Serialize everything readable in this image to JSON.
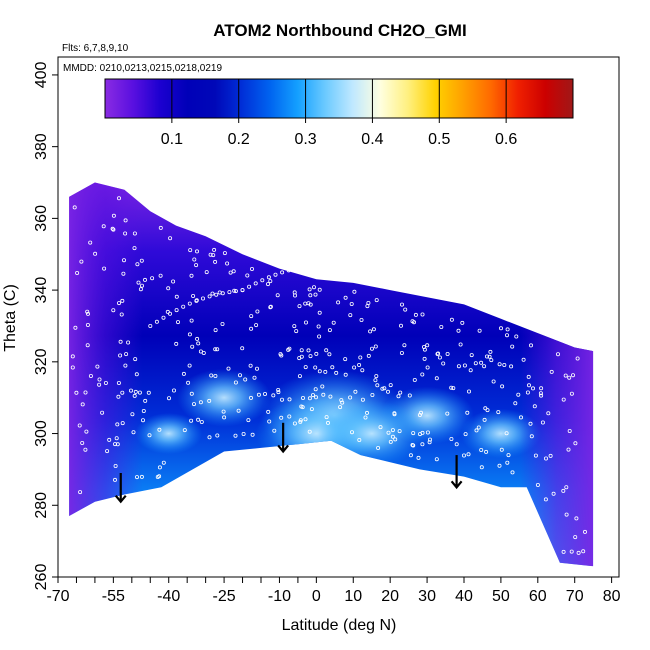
{
  "chart_data": {
    "type": "heatmap",
    "title": "ATOM2 Northbound CH2O_GMI",
    "notes": [
      "Flts: 6,7,8,9,10",
      "MMDD: 0210,0213,0215,0218,0219"
    ],
    "xlabel": "Latitude (deg N)",
    "ylabel": "Theta (C)",
    "xlim": [
      -70,
      82
    ],
    "ylim": [
      260,
      405
    ],
    "xticks": [
      -70,
      -55,
      -40,
      -25,
      -10,
      0,
      10,
      20,
      30,
      40,
      50,
      60,
      70,
      80
    ],
    "xtick_labels": [
      "-70",
      "-55",
      "-40",
      "-25",
      "-10",
      "0",
      "10",
      "20",
      "30",
      "40",
      "50",
      "60",
      "70",
      "80"
    ],
    "xtick_minor": [
      -65,
      -60,
      -50,
      -45,
      -35,
      -30,
      -20,
      -15,
      -5
    ],
    "yticks": [
      260,
      280,
      300,
      320,
      340,
      360,
      380,
      400
    ],
    "ytick_labels": [
      "260",
      "280",
      "300",
      "320",
      "340",
      "360",
      "380",
      "400"
    ],
    "colorbar": {
      "range": [
        0,
        0.7
      ],
      "ticks": [
        0.1,
        0.2,
        0.3,
        0.4,
        0.5,
        0.6
      ],
      "tick_labels": [
        "0.1",
        "0.2",
        "0.3",
        "0.4",
        "0.5",
        "0.6"
      ],
      "colors": [
        "#8a2be2",
        "#5a10e0",
        "#1c00d0",
        "#0000b8",
        "#0008b8",
        "#0030d8",
        "#0064f0",
        "#14a0ff",
        "#6ccaff",
        "#bfe8ff",
        "#ffffe0",
        "#fff080",
        "#ffd200",
        "#ffa000",
        "#ff6a00",
        "#f02000",
        "#cc0000",
        "#a01818"
      ]
    },
    "upper_boundary": [
      [
        -67,
        366
      ],
      [
        -60,
        370
      ],
      [
        -52,
        368
      ],
      [
        -45,
        362
      ],
      [
        -38,
        358
      ],
      [
        -30,
        355
      ],
      [
        -20,
        350
      ],
      [
        -10,
        346
      ],
      [
        0,
        343
      ],
      [
        10,
        342
      ],
      [
        20,
        340
      ],
      [
        30,
        338
      ],
      [
        40,
        336
      ],
      [
        50,
        332
      ],
      [
        60,
        328
      ],
      [
        70,
        324
      ],
      [
        75,
        323
      ]
    ],
    "lower_boundary": [
      [
        75,
        263
      ],
      [
        66,
        264
      ],
      [
        57,
        285
      ],
      [
        50,
        285
      ],
      [
        40,
        288
      ],
      [
        28,
        290
      ],
      [
        20,
        292
      ],
      [
        12,
        294
      ],
      [
        4,
        298
      ],
      [
        -5,
        297
      ],
      [
        -15,
        296
      ],
      [
        -25,
        295
      ],
      [
        -42,
        285
      ],
      [
        -52,
        283
      ],
      [
        -60,
        281
      ],
      [
        -67,
        277
      ]
    ],
    "hotspots": [
      {
        "x": 5,
        "y": 305,
        "value": 0.3
      },
      {
        "x": 0,
        "y": 300,
        "value": 0.26
      },
      {
        "x": -25,
        "y": 310,
        "value": 0.22
      },
      {
        "x": 30,
        "y": 305,
        "value": 0.22
      },
      {
        "x": 50,
        "y": 300,
        "value": 0.2
      },
      {
        "x": -40,
        "y": 300,
        "value": 0.18
      },
      {
        "x": 15,
        "y": 300,
        "value": 0.24
      }
    ],
    "arrows": [
      {
        "x": -53,
        "y_top": 289,
        "y_bottom": 281
      },
      {
        "x": -9,
        "y_top": 303,
        "y_bottom": 295
      },
      {
        "x": 38,
        "y_top": 294,
        "y_bottom": 285
      }
    ],
    "sample_points": "white open circles along flight tracks"
  }
}
